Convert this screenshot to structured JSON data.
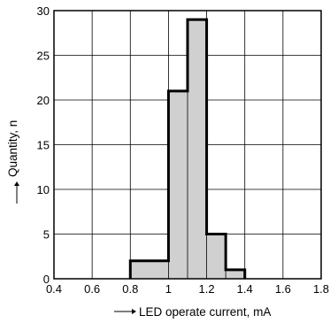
{
  "chart_data": {
    "type": "bar",
    "xlabel": "LED operate current, mA",
    "ylabel": "Quantity, n",
    "xlim": [
      0.4,
      1.8
    ],
    "ylim": [
      0,
      30
    ],
    "x_ticks": [
      "0.4",
      "0.6",
      "0.8",
      "1",
      "1.2",
      "1.4",
      "1.6",
      "1.8"
    ],
    "y_ticks": [
      "0",
      "5",
      "10",
      "15",
      "20",
      "25",
      "30"
    ],
    "x_tick_values": [
      0.4,
      0.6,
      0.8,
      1.0,
      1.2,
      1.4,
      1.6,
      1.8
    ],
    "y_tick_values": [
      0,
      5,
      10,
      15,
      20,
      25,
      30
    ],
    "bins": [
      {
        "start": 0.8,
        "end": 1.0,
        "value": 2
      },
      {
        "start": 1.0,
        "end": 1.1,
        "value": 21
      },
      {
        "start": 1.1,
        "end": 1.2,
        "value": 29
      },
      {
        "start": 1.2,
        "end": 1.3,
        "value": 5
      },
      {
        "start": 1.3,
        "end": 1.4,
        "value": 1
      }
    ],
    "grid": true,
    "colors": {
      "fill": "#d0d0d0",
      "outline": "#000000",
      "grid": "#000000"
    }
  }
}
